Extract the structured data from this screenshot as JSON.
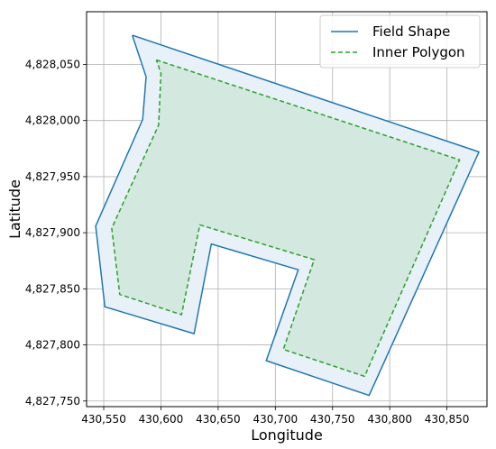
{
  "chart_data": {
    "type": "line",
    "xlabel": "Longitude",
    "ylabel": "Latitude",
    "xlim": [
      430535,
      430885
    ],
    "ylim": [
      4827745,
      4828097
    ],
    "xticks": [
      430550,
      430600,
      430650,
      430700,
      430750,
      430800,
      430850
    ],
    "xtick_labels": [
      "430,550",
      "430,600",
      "430,650",
      "430,700",
      "430,750",
      "430,800",
      "430,850"
    ],
    "yticks": [
      4827750,
      4827800,
      4827850,
      4827900,
      4827950,
      4828000,
      4828050
    ],
    "ytick_labels": [
      "4,827,750",
      "4,827,800",
      "4,827,850",
      "4,827,900",
      "4,827,950",
      "4,828,000",
      "4,828,050"
    ],
    "grid": true,
    "legend_position": "top-right",
    "colors": {
      "field": "#1f77b4",
      "field_fill": "#e8f0f8",
      "inner": "#2ca02c",
      "inner_fill": "#d3e9df"
    },
    "series": [
      {
        "name": "Field Shape",
        "style": "solid",
        "x": [
          430575,
          430878,
          430782,
          430692,
          430720,
          430644,
          430629,
          430551,
          430543,
          430584,
          430587,
          430575
        ],
        "y": [
          4828076,
          4827972,
          4827755,
          4827786,
          4827867,
          4827890,
          4827810,
          4827834,
          4827906,
          4828001,
          4828039,
          4828076
        ]
      },
      {
        "name": "Inner Polygon",
        "style": "dashed",
        "x": [
          430596,
          430861,
          430778,
          430707,
          430734,
          430634,
          430618,
          430564,
          430557,
          430598,
          430600,
          430596
        ],
        "y": [
          4828054,
          4827965,
          4827772,
          4827796,
          4827876,
          4827907,
          4827827,
          4827845,
          4827904,
          4827996,
          4828042,
          4828054
        ]
      }
    ]
  }
}
